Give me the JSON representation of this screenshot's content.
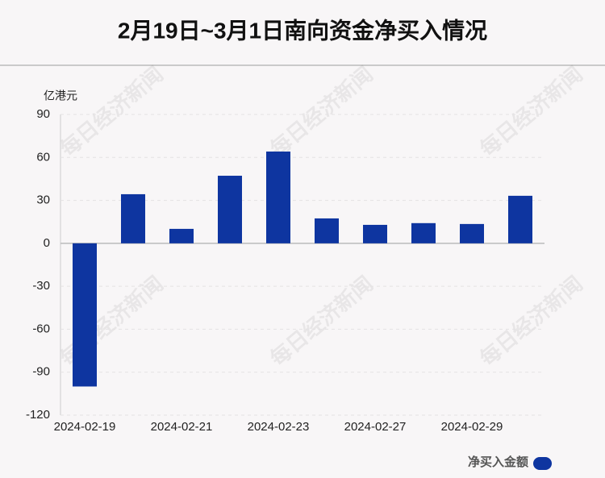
{
  "chart_data": {
    "type": "bar",
    "title": "2月19日~3月1日南向资金净买入情况",
    "y_unit": "亿港元",
    "watermark": "每日经济新闻",
    "categories": [
      "2024-02-19",
      null,
      "2024-02-21",
      null,
      "2024-02-23",
      null,
      "2024-02-27",
      null,
      "2024-02-29",
      null
    ],
    "series": [
      {
        "name": "净买入金额",
        "color": "#0e35a0",
        "values": [
          -100,
          34.3,
          10.1,
          47.2,
          64.1,
          17.4,
          12.9,
          14.1,
          13.5,
          33.2
        ]
      }
    ],
    "ylim": [
      -120,
      90
    ],
    "yticks": [
      -120,
      -90,
      -60,
      -30,
      0,
      30,
      60,
      90
    ],
    "grid": true,
    "legend": "bottom-right"
  }
}
